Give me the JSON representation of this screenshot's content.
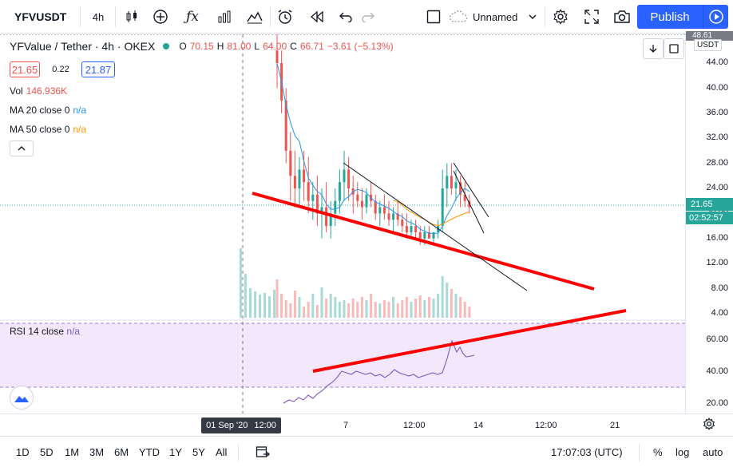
{
  "toolbar": {
    "symbol": "YFVUSDT",
    "interval": "4h",
    "layout_name": "Unnamed",
    "publish_label": "Publish"
  },
  "legend": {
    "title": "YFValue / Tether · 4h · OKEX",
    "open": "70.15",
    "high": "81.00",
    "low": "64.00",
    "close": "66.71",
    "change": "−3.61 (−5.13%)",
    "bid": "21.65",
    "spread": "0.22",
    "ask": "21.87",
    "vol_label": "Vol",
    "vol_value": "146.936K",
    "ma20_label": "MA 20 close 0",
    "ma20_value": "n/a",
    "ma50_label": "MA 50 close 0",
    "ma50_value": "n/a",
    "rsi_label": "RSI 14 close",
    "rsi_value": "n/a"
  },
  "price_scale": {
    "currency": "USDT",
    "top_value": "48.61",
    "ticks": [
      "44.00",
      "40.00",
      "36.00",
      "32.00",
      "28.00",
      "24.00",
      "20.00",
      "16.00",
      "12.00",
      "8.00",
      "4.00"
    ],
    "last_price": "21.65",
    "countdown": "02:52:57",
    "rsi_ticks": [
      "60.00",
      "40.00",
      "20.00"
    ]
  },
  "time_axis": {
    "crosshair_date": "01 Sep '20",
    "crosshair_time": "12:00",
    "labels": [
      "7",
      "12:00",
      "14",
      "12:00",
      "21"
    ]
  },
  "bottom": {
    "ranges": [
      "1D",
      "5D",
      "1M",
      "3M",
      "6M",
      "YTD",
      "1Y",
      "5Y",
      "All"
    ],
    "clock": "17:07:03 (UTC)",
    "percent": "%",
    "log": "log",
    "auto": "auto"
  },
  "colors": {
    "up": "#26a69a",
    "down": "#ef5350",
    "ma20": "#2196f3",
    "ma50": "#ff9800",
    "rsi": "#7e57c2",
    "trendline": "#ff0000",
    "accent": "#2962ff"
  },
  "chart_data": {
    "type": "candlestick",
    "ylim": [
      2,
      48.6
    ],
    "candles": [
      [
        46,
        49,
        40,
        44
      ],
      [
        44,
        46,
        36,
        38
      ],
      [
        38,
        40,
        28,
        30
      ],
      [
        30,
        33,
        22,
        26
      ],
      [
        26,
        30,
        21,
        24
      ],
      [
        24,
        29,
        21,
        27
      ],
      [
        27,
        30,
        22,
        25
      ],
      [
        25,
        29,
        20,
        22
      ],
      [
        22,
        25,
        19,
        23
      ],
      [
        23,
        26,
        18,
        20
      ],
      [
        20,
        24,
        16,
        21
      ],
      [
        21,
        25,
        17,
        18
      ],
      [
        18,
        22,
        16,
        20
      ],
      [
        20,
        24,
        18,
        22
      ],
      [
        22,
        27,
        20,
        25
      ],
      [
        25,
        30,
        22,
        27
      ],
      [
        27,
        29,
        22,
        24
      ],
      [
        24,
        26,
        20,
        23
      ],
      [
        23,
        25,
        21,
        22
      ],
      [
        22,
        24,
        19,
        21
      ],
      [
        21,
        24,
        20,
        23
      ],
      [
        23,
        25,
        21,
        22
      ],
      [
        22,
        23,
        19,
        20
      ],
      [
        20,
        22,
        18,
        21
      ],
      [
        21,
        23,
        19,
        20
      ],
      [
        20,
        22,
        18,
        19
      ],
      [
        19,
        21,
        17,
        20
      ],
      [
        20,
        22,
        18,
        19
      ],
      [
        19,
        20,
        17,
        18
      ],
      [
        18,
        20,
        16,
        17
      ],
      [
        17,
        19,
        16,
        18
      ],
      [
        18,
        19,
        16,
        17
      ],
      [
        17,
        18,
        15,
        16
      ],
      [
        16,
        18,
        15,
        17
      ],
      [
        17,
        18,
        16,
        16
      ],
      [
        16,
        17,
        15,
        17
      ],
      [
        17,
        19,
        16,
        18
      ],
      [
        18,
        27,
        17,
        24
      ],
      [
        24,
        28,
        21,
        26
      ],
      [
        26,
        28,
        23,
        24
      ],
      [
        24,
        27,
        22,
        25
      ],
      [
        25,
        26,
        21,
        23
      ],
      [
        23,
        25,
        21,
        22
      ],
      [
        22,
        23,
        20,
        21
      ]
    ],
    "trendlines_price": [
      {
        "from": [
          316,
          242
        ],
        "to": [
          744,
          362
        ]
      },
      {
        "from": [
          430,
          204
        ],
        "to": [
          660,
          364
        ]
      },
      {
        "from": [
          568,
          204
        ],
        "to": [
          612,
          272
        ]
      },
      {
        "from": [
          568,
          214
        ],
        "to": [
          606,
          292
        ]
      }
    ],
    "trendline_rsi": {
      "from": [
        392,
        465
      ],
      "to": [
        784,
        389
      ]
    }
  }
}
